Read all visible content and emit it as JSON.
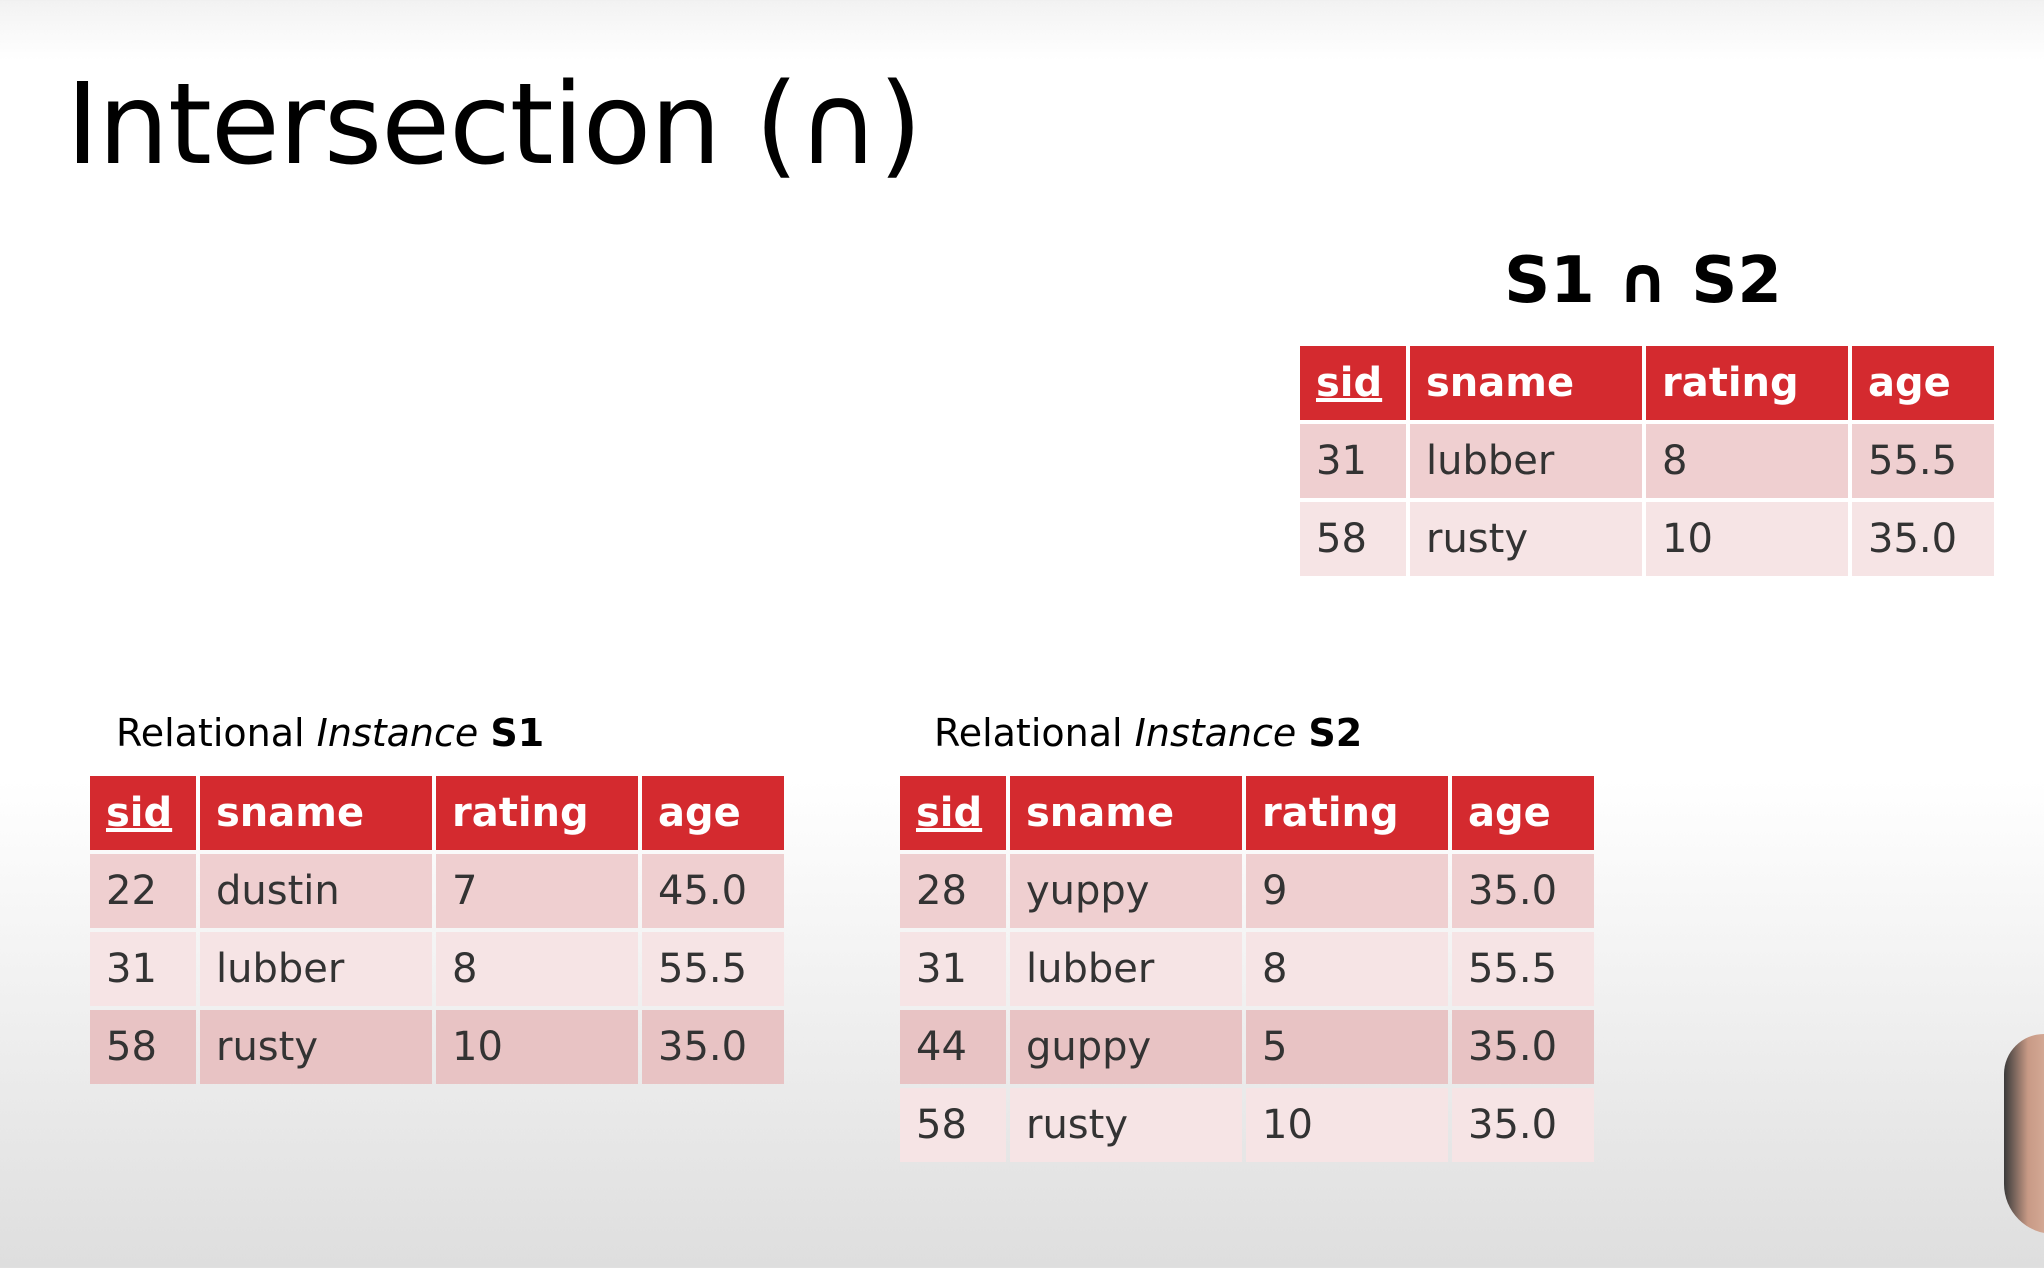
{
  "title": "Intersection (∩)",
  "result": {
    "heading": "S1 ∩ S2",
    "columns": [
      "sid",
      "sname",
      "rating",
      "age"
    ],
    "rows": [
      [
        "31",
        "lubber",
        "8",
        "55.5"
      ],
      [
        "58",
        "rusty",
        "10",
        "35.0"
      ]
    ]
  },
  "s1": {
    "caption_prefix": "Relational",
    "caption_italic": "Instance",
    "caption_name": "S1",
    "columns": [
      "sid",
      "sname",
      "rating",
      "age"
    ],
    "rows": [
      [
        "22",
        "dustin",
        "7",
        "45.0"
      ],
      [
        "31",
        "lubber",
        "8",
        "55.5"
      ],
      [
        "58",
        "rusty",
        "10",
        "35.0"
      ]
    ]
  },
  "s2": {
    "caption_prefix": "Relational",
    "caption_italic": "Instance",
    "caption_name": "S2",
    "columns": [
      "sid",
      "sname",
      "rating",
      "age"
    ],
    "rows": [
      [
        "28",
        "yuppy",
        "9",
        "35.0"
      ],
      [
        "31",
        "lubber",
        "8",
        "55.5"
      ],
      [
        "44",
        "guppy",
        "5",
        "35.0"
      ],
      [
        "58",
        "rusty",
        "10",
        "35.0"
      ]
    ]
  },
  "colors": {
    "header_red": "#d42a2f",
    "row_pink": "#efcfd0",
    "row_light": "#f6e4e5"
  }
}
